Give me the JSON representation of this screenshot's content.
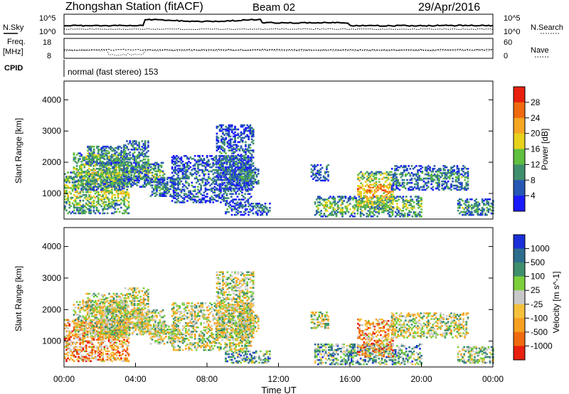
{
  "header": {
    "station": "Zhongshan Station (fitACF)",
    "beam": "Beam 02",
    "date": "29/Apr/2016"
  },
  "status_panels": {
    "sky_label": "N.Sky",
    "search_label": "N.Search",
    "freq_label_1": "Freq.",
    "freq_label_2": "[MHz]",
    "nave_label": "Nave",
    "cpid_label": "CPID",
    "sky_ticks": [
      "10^5",
      "10^0"
    ],
    "search_ticks": [
      "10^5",
      "10^0"
    ],
    "freq_ticks": [
      "18",
      "8"
    ],
    "nave_ticks": [
      "60",
      "0"
    ],
    "cpid_text": "normal (fast stereo) 153"
  },
  "chart_data": [
    {
      "type": "heatmap",
      "title": "",
      "xlabel": "",
      "ylabel": "Slant Range [km]",
      "xlim": [
        0,
        24
      ],
      "ylim": [
        180,
        4600
      ],
      "yticks": [
        "1000",
        "2000",
        "3000",
        "4000"
      ],
      "colorbar": {
        "label": "Power [dB]",
        "ticks": [
          "4",
          "8",
          "12",
          "16",
          "20",
          "24",
          "28"
        ],
        "range": [
          0,
          30
        ],
        "colors": [
          "#1a1aff",
          "#2757b5",
          "#3f8f6e",
          "#5fbf3f",
          "#e8d21c",
          "#f5a623",
          "#f06a10",
          "#e8200f"
        ]
      },
      "echo_regions": [
        {
          "t": [
            0.0,
            3.6
          ],
          "r": [
            350,
            1700
          ],
          "level": 0.55
        },
        {
          "t": [
            0.5,
            3.5
          ],
          "r": [
            1100,
            2300
          ],
          "level": 0.5
        },
        {
          "t": [
            1.2,
            3.4
          ],
          "r": [
            1900,
            2500
          ],
          "level": 0.4
        },
        {
          "t": [
            2.0,
            5.6
          ],
          "r": [
            1200,
            2000
          ],
          "level": 0.45
        },
        {
          "t": [
            3.3,
            4.7
          ],
          "r": [
            1400,
            2700
          ],
          "level": 0.3
        },
        {
          "t": [
            4.8,
            6.4
          ],
          "r": [
            900,
            1500
          ],
          "level": 0.3
        },
        {
          "t": [
            6.0,
            10.5
          ],
          "r": [
            700,
            2200
          ],
          "level": 0.22
        },
        {
          "t": [
            8.5,
            10.6
          ],
          "r": [
            1100,
            3200
          ],
          "level": 0.2
        },
        {
          "t": [
            9.8,
            10.9
          ],
          "r": [
            1300,
            1800
          ],
          "level": 0.35
        },
        {
          "t": [
            9.0,
            11.5
          ],
          "r": [
            300,
            700
          ],
          "level": 0.2
        },
        {
          "t": [
            13.8,
            14.8
          ],
          "r": [
            1400,
            1900
          ],
          "level": 0.2
        },
        {
          "t": [
            14.0,
            20.0
          ],
          "r": [
            250,
            900
          ],
          "level": 0.5
        },
        {
          "t": [
            16.4,
            18.4
          ],
          "r": [
            500,
            1700
          ],
          "level": 0.75
        },
        {
          "t": [
            18.3,
            22.6
          ],
          "r": [
            1100,
            1900
          ],
          "level": 0.3
        },
        {
          "t": [
            22.0,
            24.0
          ],
          "r": [
            300,
            800
          ],
          "level": 0.35
        }
      ]
    },
    {
      "type": "heatmap",
      "title": "",
      "xlabel": "Time UT",
      "ylabel": "Slant Range [km]",
      "xlim": [
        0,
        24
      ],
      "ylim": [
        180,
        4600
      ],
      "xticks": [
        "00:00",
        "04:00",
        "08:00",
        "12:00",
        "16:00",
        "20:00",
        "00:00"
      ],
      "yticks": [
        "1000",
        "2000",
        "3000",
        "4000"
      ],
      "colorbar": {
        "label": "Velocity [m s^-1]",
        "ticks": [
          "1000",
          "500",
          "100",
          "25",
          "-25",
          "-100",
          "-500",
          "-1000"
        ],
        "range": [
          -1200,
          1200
        ],
        "colors": [
          "#1a2fd8",
          "#2d6e8e",
          "#3f8f6e",
          "#7ccf3a",
          "#c8c8c8",
          "#f5c13c",
          "#f5a020",
          "#f06a10",
          "#e8200f"
        ]
      },
      "echo_regions": [
        {
          "t": [
            0.0,
            3.6
          ],
          "r": [
            350,
            1700
          ],
          "level": 0.72
        },
        {
          "t": [
            0.5,
            3.5
          ],
          "r": [
            1100,
            2300
          ],
          "level": 0.5
        },
        {
          "t": [
            1.2,
            3.4
          ],
          "r": [
            1900,
            2500
          ],
          "level": 0.5
        },
        {
          "t": [
            2.0,
            5.6
          ],
          "r": [
            1200,
            2000
          ],
          "level": 0.5
        },
        {
          "t": [
            3.3,
            4.7
          ],
          "r": [
            1400,
            2700
          ],
          "level": 0.5
        },
        {
          "t": [
            4.8,
            6.4
          ],
          "r": [
            900,
            1500
          ],
          "level": 0.5
        },
        {
          "t": [
            6.0,
            10.5
          ],
          "r": [
            700,
            2200
          ],
          "level": 0.5
        },
        {
          "t": [
            8.5,
            10.6
          ],
          "r": [
            1100,
            3200
          ],
          "level": 0.5
        },
        {
          "t": [
            9.8,
            10.9
          ],
          "r": [
            1300,
            1800
          ],
          "level": 0.5
        },
        {
          "t": [
            9.0,
            11.5
          ],
          "r": [
            300,
            700
          ],
          "level": 0.3
        },
        {
          "t": [
            13.8,
            14.8
          ],
          "r": [
            1400,
            1900
          ],
          "level": 0.5
        },
        {
          "t": [
            14.0,
            20.0
          ],
          "r": [
            250,
            900
          ],
          "level": 0.3
        },
        {
          "t": [
            16.4,
            18.4
          ],
          "r": [
            500,
            1700
          ],
          "level": 0.72
        },
        {
          "t": [
            18.3,
            22.6
          ],
          "r": [
            1100,
            1900
          ],
          "level": 0.5
        },
        {
          "t": [
            22.0,
            24.0
          ],
          "r": [
            300,
            800
          ],
          "level": 0.4
        }
      ]
    }
  ]
}
